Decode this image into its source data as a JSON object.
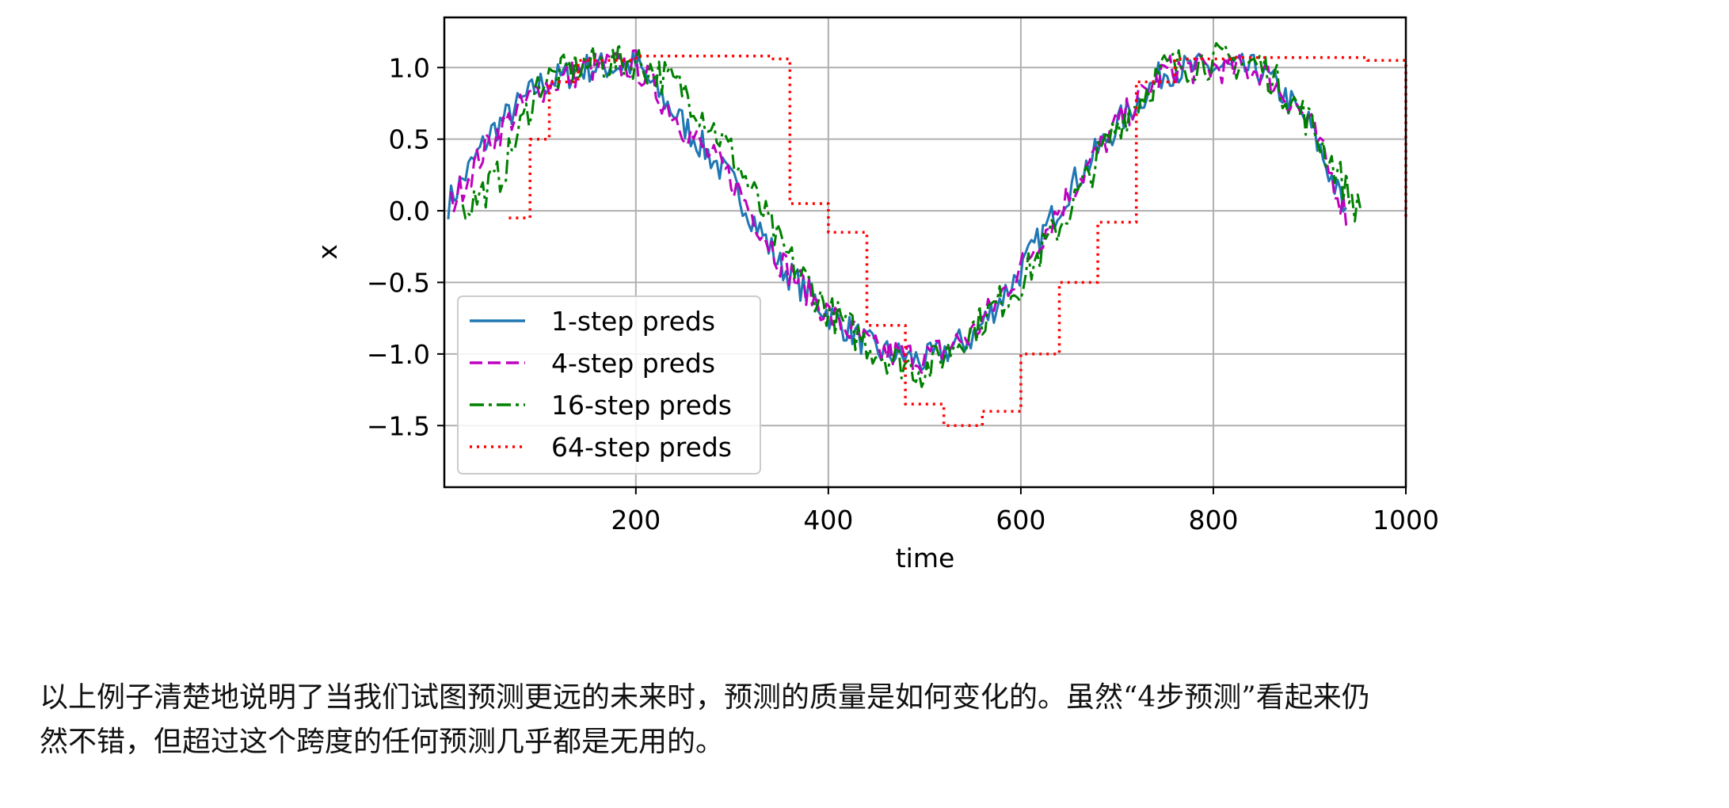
{
  "chart_data": {
    "type": "line",
    "xlabel": "time",
    "ylabel": "x",
    "xlim": [
      1,
      1000
    ],
    "ylim": [
      -1.93,
      1.35
    ],
    "xticks": [
      200,
      400,
      600,
      800,
      1000
    ],
    "yticks": [
      -1.5,
      -1.0,
      -0.5,
      0.0,
      0.5,
      1.0
    ],
    "xtick_labels": [
      "200",
      "400",
      "600",
      "800",
      "1000"
    ],
    "ytick_labels": [
      "−1.5",
      "−1.0",
      "−0.5",
      "0.0",
      "0.5",
      "1.0"
    ],
    "grid": true,
    "legend_position": "lower-left",
    "series": [
      {
        "name": "1-step preds",
        "color": "#1f77b4",
        "dash": "solid",
        "x_start": 5,
        "x_end": 940,
        "x": [
          5,
          50,
          100,
          150,
          200,
          250,
          300,
          350,
          400,
          450,
          500,
          550,
          600,
          650,
          700,
          750,
          800,
          850,
          900,
          940
        ],
        "y": [
          0.05,
          0.55,
          0.88,
          1.0,
          1.02,
          0.6,
          0.2,
          -0.38,
          -0.72,
          -0.98,
          -1.05,
          -0.88,
          -0.42,
          0.15,
          0.6,
          0.98,
          1.0,
          0.98,
          0.6,
          -0.05
        ]
      },
      {
        "name": "4-step preds",
        "color": "#bf00bf",
        "dash": "dashed",
        "x_start": 8,
        "x_end": 943,
        "x": [
          8,
          50,
          100,
          150,
          200,
          250,
          300,
          350,
          400,
          450,
          500,
          550,
          600,
          650,
          700,
          750,
          800,
          850,
          900,
          943
        ],
        "y": [
          0.05,
          0.5,
          0.85,
          1.0,
          1.02,
          0.58,
          0.22,
          -0.35,
          -0.72,
          -0.98,
          -1.03,
          -0.86,
          -0.4,
          0.12,
          0.6,
          0.98,
          1.0,
          0.98,
          0.62,
          -0.1
        ]
      },
      {
        "name": "16-step preds",
        "color": "#008000",
        "dash": "dashdot",
        "x_start": 20,
        "x_end": 955,
        "x": [
          20,
          60,
          100,
          150,
          200,
          250,
          300,
          350,
          400,
          450,
          500,
          550,
          600,
          650,
          700,
          750,
          800,
          850,
          900,
          955
        ],
        "y": [
          0.0,
          0.25,
          0.9,
          1.02,
          1.05,
          0.85,
          0.4,
          -0.25,
          -0.7,
          -0.98,
          -1.12,
          -0.82,
          -0.5,
          0.0,
          0.6,
          1.0,
          1.05,
          1.02,
          0.62,
          -0.05
        ]
      },
      {
        "name": "64-step preds",
        "color": "#ff0000",
        "dash": "dotted",
        "x_start": 68,
        "x_end": 1000,
        "x": [
          68,
          90,
          110,
          140,
          200,
          260,
          340,
          360,
          400,
          440,
          480,
          520,
          560,
          600,
          640,
          680,
          720,
          760,
          820,
          900,
          960,
          1000
        ],
        "y": [
          -0.05,
          0.5,
          0.9,
          1.05,
          1.08,
          1.08,
          1.06,
          0.05,
          -0.15,
          -0.8,
          -1.35,
          -1.5,
          -1.4,
          -1.0,
          -0.5,
          -0.08,
          0.9,
          1.06,
          1.07,
          1.07,
          1.05,
          -0.05
        ]
      }
    ]
  },
  "caption": {
    "line1": "以上例子清楚地说明了当我们试图预测更远的未来时，预测的质量是如何变化的。虽然“4步预测”看起来仍",
    "line2": "然不错，但超过这个跨度的任何预测几乎都是无用的。"
  }
}
